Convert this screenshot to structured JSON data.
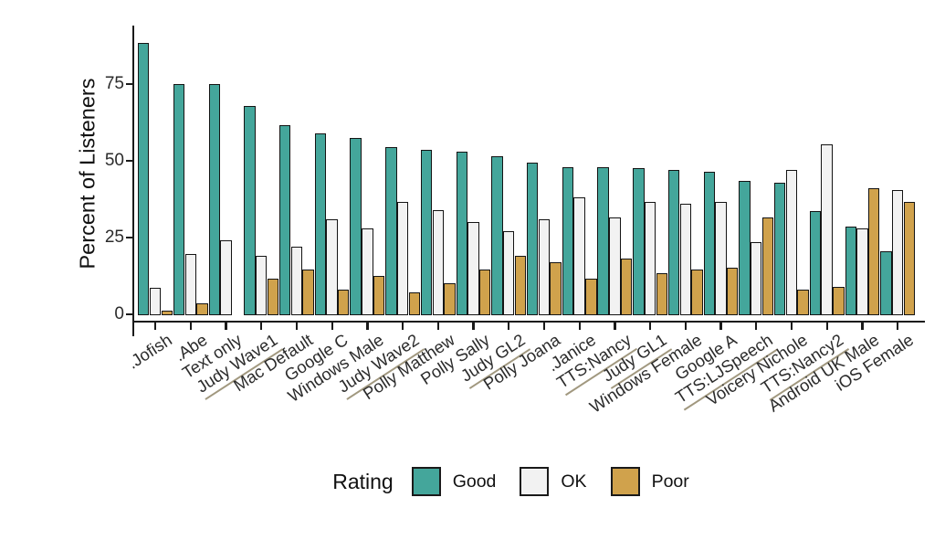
{
  "chart_data": {
    "type": "bar",
    "title": "",
    "xlabel": "",
    "ylabel": "Percent of Listeners",
    "ylim": [
      0,
      92
    ],
    "yticks": [
      0,
      25,
      50,
      75
    ],
    "grid": false,
    "legend_position": "bottom",
    "legend_title": "Rating",
    "categories": [
      ".Jofish",
      ".Abe",
      "Text only",
      "Judy Wave1",
      "Mac Default",
      "Google C",
      "Windows Male",
      "Judy Wave2",
      "Polly Matthew",
      "Polly Sally",
      "Judy GL2",
      "Polly Joana",
      ".Janice",
      "TTS:Nancy",
      "Judy GL1",
      "Windows Female",
      "Google A",
      "TTS:LJSpeech",
      "Voicery Nichole",
      "TTS:Nancy2",
      "Android UK Male",
      "iOS Female"
    ],
    "underlined_categories": [
      "Judy Wave1",
      "Judy Wave2",
      "Judy GL2",
      "TTS:Nancy",
      "Judy GL1",
      "TTS:LJSpeech",
      "TTS:Nancy2"
    ],
    "series": [
      {
        "name": "Good",
        "color": "#44a69b",
        "values": [
          89,
          75.5,
          75.5,
          68.5,
          62,
          59.5,
          58,
          55,
          54,
          53.5,
          52,
          50,
          48.5,
          48.5,
          48,
          47.5,
          47,
          44,
          43.5,
          34,
          29,
          21
        ]
      },
      {
        "name": "OK",
        "color": "#f2f2f2",
        "values": [
          9,
          20,
          24.5,
          19.5,
          22.5,
          31.5,
          28.5,
          37,
          34.5,
          30.5,
          27.5,
          31.5,
          38.5,
          32,
          37,
          36.5,
          37,
          24,
          47.5,
          56,
          28.5,
          41
        ]
      },
      {
        "name": "Poor",
        "color": "#d0a24c",
        "values": [
          1.5,
          4,
          0,
          12,
          15,
          8.5,
          13,
          7.5,
          10.5,
          15,
          19.5,
          17.5,
          12,
          18.5,
          14,
          15,
          15.5,
          32,
          8.5,
          9.5,
          41.5,
          37
        ]
      }
    ]
  },
  "colors": {
    "good": "#44a69b",
    "ok": "#f2f2f2",
    "poor": "#d0a24c",
    "axis": "#1a1a1a",
    "underline": "#a1987f",
    "background": "#ffffff"
  }
}
